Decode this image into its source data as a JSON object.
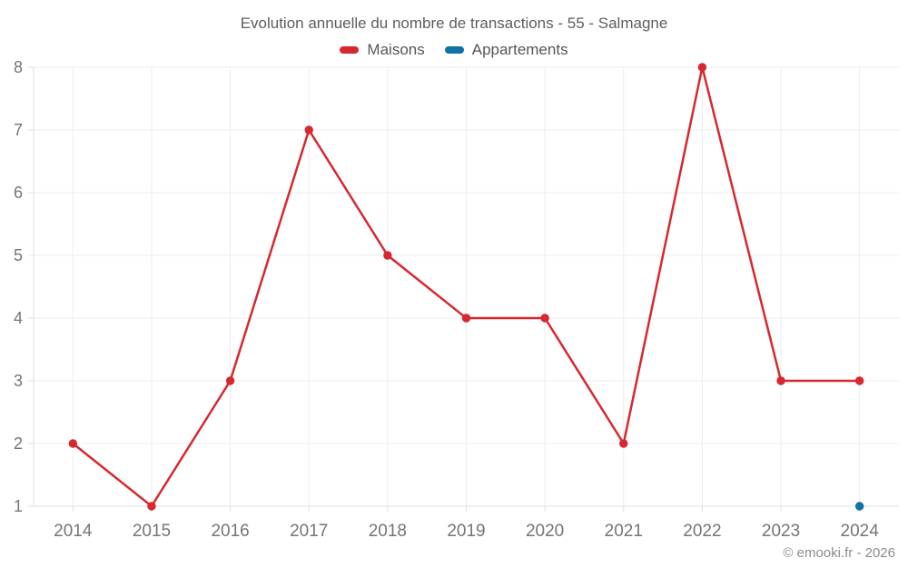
{
  "title": "Evolution annuelle du nombre de transactions - 55 - Salmagne",
  "footer": "© emooki.fr - 2026",
  "colors": {
    "maisons": "#d7282f",
    "appartements": "#1171a7",
    "grid": "#ededed",
    "axis": "#e0e0e0",
    "tick_label": "#757575"
  },
  "chart_data": {
    "type": "line",
    "categories": [
      "2014",
      "2015",
      "2016",
      "2017",
      "2018",
      "2019",
      "2020",
      "2021",
      "2022",
      "2023",
      "2024"
    ],
    "series": [
      {
        "name": "Maisons",
        "color": "#d7282f",
        "values": [
          2,
          1,
          3,
          7,
          5,
          4,
          4,
          2,
          8,
          3,
          3
        ]
      },
      {
        "name": "Appartements",
        "color": "#1171a7",
        "values": [
          null,
          null,
          null,
          null,
          null,
          null,
          null,
          null,
          null,
          null,
          1
        ]
      }
    ],
    "title": "Evolution annuelle du nombre de transactions - 55 - Salmagne",
    "xlabel": "",
    "ylabel": "",
    "ylim": [
      1,
      8
    ],
    "yticks": [
      1,
      2,
      3,
      4,
      5,
      6,
      7,
      8
    ],
    "grid": true,
    "legend_position": "top"
  }
}
